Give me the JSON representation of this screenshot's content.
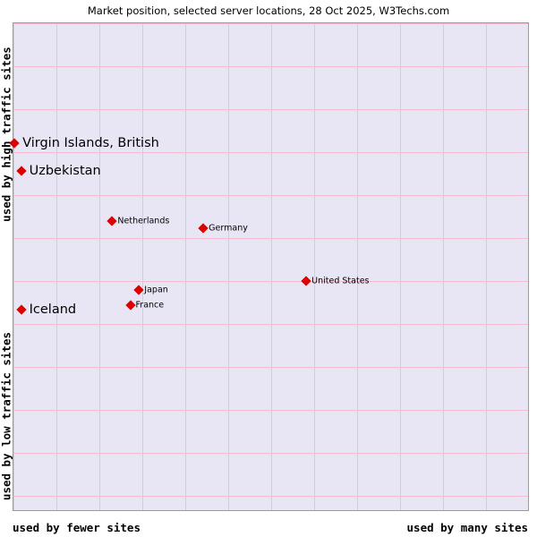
{
  "title": "Market position, selected server locations, 28 Oct 2025, W3Techs.com",
  "axes": {
    "y_top": "used by high traffic sites",
    "y_bottom": "used by low traffic sites",
    "x_left": "used by fewer sites",
    "x_right": "used by many sites"
  },
  "colors": {
    "marker": "#dd0000",
    "plot_bg": "#e8e6f5",
    "grid": "#f6bccf"
  },
  "chart_data": {
    "type": "scatter",
    "title": "Market position, selected server locations, 28 Oct 2025, W3Techs.com",
    "x_axis": {
      "label_left": "used by fewer sites",
      "label_right": "used by many sites",
      "scale": "qualitative"
    },
    "y_axis": {
      "label_top": "used by high traffic sites",
      "label_bottom": "used by low traffic sites",
      "scale": "qualitative"
    },
    "grid": true,
    "marker_shape": "diamond",
    "points": [
      {
        "label": "Virgin Islands, British",
        "x_pct": 0.2,
        "y_pct": 24.7,
        "emphasis": "large"
      },
      {
        "label": "Uzbekistan",
        "x_pct": 1.5,
        "y_pct": 30.4,
        "emphasis": "large"
      },
      {
        "label": "Netherlands",
        "x_pct": 19.2,
        "y_pct": 40.7,
        "emphasis": "small"
      },
      {
        "label": "Germany",
        "x_pct": 36.9,
        "y_pct": 42.1,
        "emphasis": "small"
      },
      {
        "label": "United States",
        "x_pct": 56.9,
        "y_pct": 52.9,
        "emphasis": "small"
      },
      {
        "label": "Japan",
        "x_pct": 24.4,
        "y_pct": 54.8,
        "emphasis": "small"
      },
      {
        "label": "France",
        "x_pct": 22.7,
        "y_pct": 57.9,
        "emphasis": "small"
      },
      {
        "label": "Iceland",
        "x_pct": 1.5,
        "y_pct": 58.8,
        "emphasis": "large"
      }
    ]
  }
}
